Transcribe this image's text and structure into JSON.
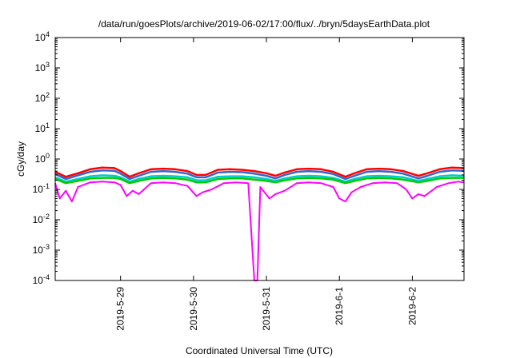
{
  "chart_data": {
    "type": "line",
    "title": "/data/run/goesPlots/archive/2019-06-02/17:00/flux/../bryn/5daysEarthData.plot",
    "xlabel": "Coordinated Universal Time (UTC)",
    "ylabel": "cGy/day",
    "y_scale": "log",
    "ylim": [
      0.0001,
      10000
    ],
    "xlim": [
      "2019-05-28 02:30",
      "2019-06-02 17:00"
    ],
    "y_ticks": [
      {
        "value": 0.0001,
        "base": "10",
        "exp": "-4"
      },
      {
        "value": 0.001,
        "base": "10",
        "exp": "-3"
      },
      {
        "value": 0.01,
        "base": "10",
        "exp": "-2"
      },
      {
        "value": 0.1,
        "base": "10",
        "exp": "-1"
      },
      {
        "value": 1,
        "base": "10",
        "exp": "0"
      },
      {
        "value": 10,
        "base": "10",
        "exp": "1"
      },
      {
        "value": 100,
        "base": "10",
        "exp": "2"
      },
      {
        "value": 1000,
        "base": "10",
        "exp": "3"
      },
      {
        "value": 10000,
        "base": "10",
        "exp": "4"
      }
    ],
    "x_ticks": [
      {
        "value": "2019-05-29 00:00",
        "label": "2019-5-29"
      },
      {
        "value": "2019-05-30 00:00",
        "label": "2019-5-30"
      },
      {
        "value": "2019-05-31 00:00",
        "label": "2019-5-31"
      },
      {
        "value": "2019-06-01 00:00",
        "label": "2019-6-1"
      },
      {
        "value": "2019-06-02 00:00",
        "label": "2019-6-2"
      }
    ],
    "grid": false,
    "legend": "none",
    "series": [
      {
        "color": "#ff0000",
        "values": [
          [
            "2019-05-28 02:30",
            0.38
          ],
          [
            "2019-05-28 06:00",
            0.26
          ],
          [
            "2019-05-28 10:00",
            0.34
          ],
          [
            "2019-05-28 14:00",
            0.46
          ],
          [
            "2019-05-28 18:00",
            0.52
          ],
          [
            "2019-05-28 22:00",
            0.5
          ],
          [
            "2019-05-29 00:00",
            0.4
          ],
          [
            "2019-05-29 03:00",
            0.26
          ],
          [
            "2019-05-29 06:00",
            0.34
          ],
          [
            "2019-05-29 10:00",
            0.46
          ],
          [
            "2019-05-29 14:00",
            0.48
          ],
          [
            "2019-05-29 18:00",
            0.46
          ],
          [
            "2019-05-29 22:00",
            0.4
          ],
          [
            "2019-05-30 01:00",
            0.3
          ],
          [
            "2019-05-30 04:00",
            0.3
          ],
          [
            "2019-05-30 08:00",
            0.44
          ],
          [
            "2019-05-30 12:00",
            0.46
          ],
          [
            "2019-05-30 16:00",
            0.44
          ],
          [
            "2019-05-30 20:00",
            0.4
          ],
          [
            "2019-05-31 00:00",
            0.34
          ],
          [
            "2019-05-31 03:00",
            0.28
          ],
          [
            "2019-05-31 06:00",
            0.36
          ],
          [
            "2019-05-31 10:00",
            0.46
          ],
          [
            "2019-05-31 14:00",
            0.48
          ],
          [
            "2019-05-31 18:00",
            0.46
          ],
          [
            "2019-05-31 22:00",
            0.38
          ],
          [
            "2019-06-01 02:00",
            0.26
          ],
          [
            "2019-06-01 05:00",
            0.34
          ],
          [
            "2019-06-01 09:00",
            0.46
          ],
          [
            "2019-06-01 13:00",
            0.48
          ],
          [
            "2019-06-01 17:00",
            0.46
          ],
          [
            "2019-06-01 21:00",
            0.4
          ],
          [
            "2019-06-02 02:00",
            0.28
          ],
          [
            "2019-06-02 05:00",
            0.34
          ],
          [
            "2019-06-02 09:00",
            0.46
          ],
          [
            "2019-06-02 13:00",
            0.52
          ],
          [
            "2019-06-02 17:00",
            0.5
          ]
        ]
      },
      {
        "color": "#3366cc",
        "values": [
          [
            "2019-05-28 02:30",
            0.32
          ],
          [
            "2019-05-28 06:00",
            0.22
          ],
          [
            "2019-05-28 10:00",
            0.29
          ],
          [
            "2019-05-28 14:00",
            0.38
          ],
          [
            "2019-05-28 18:00",
            0.42
          ],
          [
            "2019-05-28 22:00",
            0.41
          ],
          [
            "2019-05-29 00:00",
            0.33
          ],
          [
            "2019-05-29 03:00",
            0.22
          ],
          [
            "2019-05-29 06:00",
            0.28
          ],
          [
            "2019-05-29 10:00",
            0.38
          ],
          [
            "2019-05-29 14:00",
            0.4
          ],
          [
            "2019-05-29 18:00",
            0.38
          ],
          [
            "2019-05-29 22:00",
            0.33
          ],
          [
            "2019-05-30 01:00",
            0.25
          ],
          [
            "2019-05-30 04:00",
            0.25
          ],
          [
            "2019-05-30 08:00",
            0.36
          ],
          [
            "2019-05-30 12:00",
            0.38
          ],
          [
            "2019-05-30 16:00",
            0.37
          ],
          [
            "2019-05-30 20:00",
            0.33
          ],
          [
            "2019-05-31 00:00",
            0.28
          ],
          [
            "2019-05-31 03:00",
            0.23
          ],
          [
            "2019-05-31 06:00",
            0.3
          ],
          [
            "2019-05-31 10:00",
            0.38
          ],
          [
            "2019-05-31 14:00",
            0.4
          ],
          [
            "2019-05-31 18:00",
            0.38
          ],
          [
            "2019-05-31 22:00",
            0.32
          ],
          [
            "2019-06-01 02:00",
            0.22
          ],
          [
            "2019-06-01 05:00",
            0.28
          ],
          [
            "2019-06-01 09:00",
            0.38
          ],
          [
            "2019-06-01 13:00",
            0.4
          ],
          [
            "2019-06-01 17:00",
            0.38
          ],
          [
            "2019-06-01 21:00",
            0.33
          ],
          [
            "2019-06-02 02:00",
            0.23
          ],
          [
            "2019-06-02 05:00",
            0.28
          ],
          [
            "2019-06-02 09:00",
            0.38
          ],
          [
            "2019-06-02 13:00",
            0.42
          ],
          [
            "2019-06-02 17:00",
            0.41
          ]
        ]
      },
      {
        "color": "#00cccc",
        "values": [
          [
            "2019-05-28 02:30",
            0.25
          ],
          [
            "2019-05-28 06:00",
            0.18
          ],
          [
            "2019-05-28 10:00",
            0.22
          ],
          [
            "2019-05-28 14:00",
            0.27
          ],
          [
            "2019-05-28 18:00",
            0.29
          ],
          [
            "2019-05-28 22:00",
            0.28
          ],
          [
            "2019-05-29 00:00",
            0.25
          ],
          [
            "2019-05-29 03:00",
            0.18
          ],
          [
            "2019-05-29 06:00",
            0.22
          ],
          [
            "2019-05-29 10:00",
            0.27
          ],
          [
            "2019-05-29 14:00",
            0.28
          ],
          [
            "2019-05-29 18:00",
            0.27
          ],
          [
            "2019-05-29 22:00",
            0.25
          ],
          [
            "2019-05-30 01:00",
            0.2
          ],
          [
            "2019-05-30 04:00",
            0.2
          ],
          [
            "2019-05-30 08:00",
            0.26
          ],
          [
            "2019-05-30 12:00",
            0.27
          ],
          [
            "2019-05-30 16:00",
            0.27
          ],
          [
            "2019-05-30 20:00",
            0.25
          ],
          [
            "2019-05-31 00:00",
            0.22
          ],
          [
            "2019-05-31 03:00",
            0.19
          ],
          [
            "2019-05-31 06:00",
            0.23
          ],
          [
            "2019-05-31 10:00",
            0.27
          ],
          [
            "2019-05-31 14:00",
            0.28
          ],
          [
            "2019-05-31 18:00",
            0.27
          ],
          [
            "2019-05-31 22:00",
            0.24
          ],
          [
            "2019-06-01 02:00",
            0.18
          ],
          [
            "2019-06-01 05:00",
            0.22
          ],
          [
            "2019-06-01 09:00",
            0.27
          ],
          [
            "2019-06-01 13:00",
            0.28
          ],
          [
            "2019-06-01 17:00",
            0.27
          ],
          [
            "2019-06-01 21:00",
            0.25
          ],
          [
            "2019-06-02 02:00",
            0.19
          ],
          [
            "2019-06-02 05:00",
            0.22
          ],
          [
            "2019-06-02 09:00",
            0.27
          ],
          [
            "2019-06-02 13:00",
            0.29
          ],
          [
            "2019-06-02 17:00",
            0.28
          ]
        ]
      },
      {
        "color": "#00cc00",
        "values": [
          [
            "2019-05-28 02:30",
            0.22
          ],
          [
            "2019-05-28 06:00",
            0.16
          ],
          [
            "2019-05-28 10:00",
            0.19
          ],
          [
            "2019-05-28 14:00",
            0.23
          ],
          [
            "2019-05-28 18:00",
            0.24
          ],
          [
            "2019-05-28 22:00",
            0.24
          ],
          [
            "2019-05-29 00:00",
            0.22
          ],
          [
            "2019-05-29 03:00",
            0.16
          ],
          [
            "2019-05-29 06:00",
            0.19
          ],
          [
            "2019-05-29 10:00",
            0.23
          ],
          [
            "2019-05-29 14:00",
            0.24
          ],
          [
            "2019-05-29 18:00",
            0.23
          ],
          [
            "2019-05-29 22:00",
            0.21
          ],
          [
            "2019-05-30 01:00",
            0.17
          ],
          [
            "2019-05-30 04:00",
            0.17
          ],
          [
            "2019-05-30 08:00",
            0.22
          ],
          [
            "2019-05-30 12:00",
            0.23
          ],
          [
            "2019-05-30 16:00",
            0.23
          ],
          [
            "2019-05-30 20:00",
            0.21
          ],
          [
            "2019-05-31 00:00",
            0.19
          ],
          [
            "2019-05-31 03:00",
            0.17
          ],
          [
            "2019-05-31 06:00",
            0.2
          ],
          [
            "2019-05-31 10:00",
            0.23
          ],
          [
            "2019-05-31 14:00",
            0.24
          ],
          [
            "2019-05-31 18:00",
            0.23
          ],
          [
            "2019-05-31 22:00",
            0.21
          ],
          [
            "2019-06-01 02:00",
            0.16
          ],
          [
            "2019-06-01 05:00",
            0.19
          ],
          [
            "2019-06-01 09:00",
            0.23
          ],
          [
            "2019-06-01 13:00",
            0.24
          ],
          [
            "2019-06-01 17:00",
            0.23
          ],
          [
            "2019-06-01 21:00",
            0.21
          ],
          [
            "2019-06-02 02:00",
            0.17
          ],
          [
            "2019-06-02 05:00",
            0.19
          ],
          [
            "2019-06-02 09:00",
            0.23
          ],
          [
            "2019-06-02 13:00",
            0.24
          ],
          [
            "2019-06-02 17:00",
            0.24
          ]
        ]
      },
      {
        "color": "#ff00ff",
        "values": [
          [
            "2019-05-28 02:30",
            0.16
          ],
          [
            "2019-05-28 04:00",
            0.05
          ],
          [
            "2019-05-28 06:00",
            0.09
          ],
          [
            "2019-05-28 08:00",
            0.04
          ],
          [
            "2019-05-28 10:00",
            0.12
          ],
          [
            "2019-05-28 14:00",
            0.17
          ],
          [
            "2019-05-28 18:00",
            0.18
          ],
          [
            "2019-05-28 22:00",
            0.17
          ],
          [
            "2019-05-29 00:00",
            0.14
          ],
          [
            "2019-05-29 02:00",
            0.06
          ],
          [
            "2019-05-29 04:00",
            0.09
          ],
          [
            "2019-05-29 06:00",
            0.07
          ],
          [
            "2019-05-29 10:00",
            0.16
          ],
          [
            "2019-05-29 14:00",
            0.17
          ],
          [
            "2019-05-29 18:00",
            0.16
          ],
          [
            "2019-05-29 22:00",
            0.13
          ],
          [
            "2019-05-30 01:00",
            0.06
          ],
          [
            "2019-05-30 03:00",
            0.08
          ],
          [
            "2019-05-30 06:00",
            0.1
          ],
          [
            "2019-05-30 10:00",
            0.16
          ],
          [
            "2019-05-30 14:00",
            0.17
          ],
          [
            "2019-05-30 18:00",
            0.16
          ],
          [
            "2019-05-30 20:00",
            0.0001
          ],
          [
            "2019-05-30 21:00",
            0.0001
          ],
          [
            "2019-05-30 22:00",
            0.12
          ],
          [
            "2019-05-31 01:00",
            0.05
          ],
          [
            "2019-05-31 03:00",
            0.07
          ],
          [
            "2019-05-31 06:00",
            0.09
          ],
          [
            "2019-05-31 10:00",
            0.16
          ],
          [
            "2019-05-31 14:00",
            0.17
          ],
          [
            "2019-05-31 18:00",
            0.16
          ],
          [
            "2019-05-31 22:00",
            0.12
          ],
          [
            "2019-06-01 00:00",
            0.05
          ],
          [
            "2019-06-01 02:00",
            0.04
          ],
          [
            "2019-06-01 04:00",
            0.08
          ],
          [
            "2019-06-01 07:00",
            0.12
          ],
          [
            "2019-06-01 11:00",
            0.16
          ],
          [
            "2019-06-01 15:00",
            0.17
          ],
          [
            "2019-06-01 19:00",
            0.16
          ],
          [
            "2019-06-01 22:00",
            0.1
          ],
          [
            "2019-06-02 00:00",
            0.05
          ],
          [
            "2019-06-02 02:00",
            0.07
          ],
          [
            "2019-06-02 04:00",
            0.06
          ],
          [
            "2019-06-02 08:00",
            0.12
          ],
          [
            "2019-06-02 12:00",
            0.16
          ],
          [
            "2019-06-02 15:00",
            0.18
          ],
          [
            "2019-06-02 17:00",
            0.17
          ]
        ]
      }
    ]
  }
}
